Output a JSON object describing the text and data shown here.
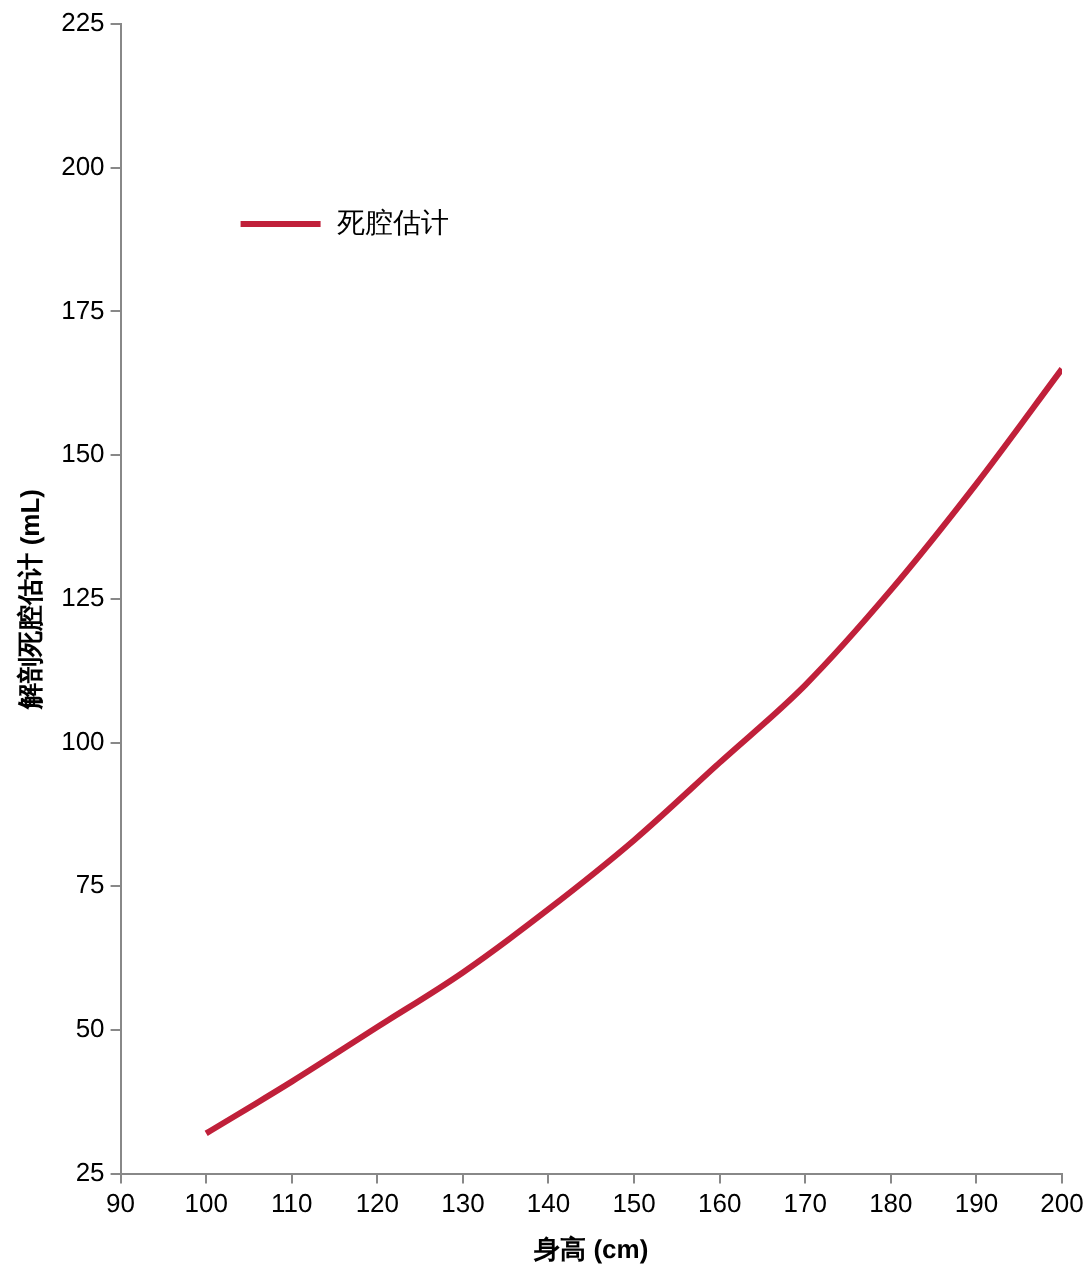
{
  "chart_data": {
    "type": "line",
    "xlabel": "身高 (cm)",
    "ylabel": "解剖死腔估计 (mL)",
    "x": [
      100,
      110,
      120,
      130,
      140,
      150,
      160,
      170,
      180,
      190,
      200
    ],
    "series": [
      {
        "name": "死腔估计",
        "color": "#c0203a",
        "values": [
          32,
          41,
          50.5,
          60,
          71,
          83,
          96.5,
          110,
          126.5,
          145,
          165
        ]
      }
    ],
    "xlim": [
      90,
      200
    ],
    "xticks": [
      90,
      100,
      110,
      120,
      130,
      140,
      150,
      160,
      170,
      180,
      190,
      200
    ],
    "ylim": [
      25,
      225
    ],
    "yticks": [
      25,
      50,
      75,
      100,
      125,
      150,
      175,
      200,
      225
    ],
    "grid": false,
    "legend": "top left",
    "marker": "none",
    "line_style": "solid"
  }
}
